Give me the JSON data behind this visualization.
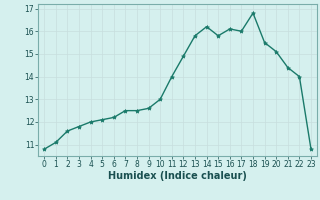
{
  "xlabel": "Humidex (Indice chaleur)",
  "x": [
    0,
    1,
    2,
    3,
    4,
    5,
    6,
    7,
    8,
    9,
    10,
    11,
    12,
    13,
    14,
    15,
    16,
    17,
    18,
    19,
    20,
    21,
    22,
    23
  ],
  "y": [
    10.8,
    11.1,
    11.6,
    11.8,
    12.0,
    12.1,
    12.2,
    12.5,
    12.5,
    12.6,
    13.0,
    14.0,
    14.9,
    15.8,
    16.2,
    15.8,
    16.1,
    16.0,
    16.8,
    15.5,
    15.1,
    14.4,
    14.0,
    10.8
  ],
  "line_color": "#1a7a6a",
  "marker_color": "#1a7a6a",
  "bg_color": "#d5f0ee",
  "grid_color": "#c8dede",
  "tick_label_color": "#1a5050",
  "spine_color": "#7aadaa",
  "ylim": [
    10.5,
    17.2
  ],
  "xlim": [
    -0.5,
    23.5
  ],
  "yticks": [
    11,
    12,
    13,
    14,
    15,
    16,
    17
  ],
  "xticks": [
    0,
    1,
    2,
    3,
    4,
    5,
    6,
    7,
    8,
    9,
    10,
    11,
    12,
    13,
    14,
    15,
    16,
    17,
    18,
    19,
    20,
    21,
    22,
    23
  ],
  "xlabel_fontsize": 7,
  "tick_fontsize": 5.5,
  "linewidth": 1.0,
  "markersize": 3.0
}
